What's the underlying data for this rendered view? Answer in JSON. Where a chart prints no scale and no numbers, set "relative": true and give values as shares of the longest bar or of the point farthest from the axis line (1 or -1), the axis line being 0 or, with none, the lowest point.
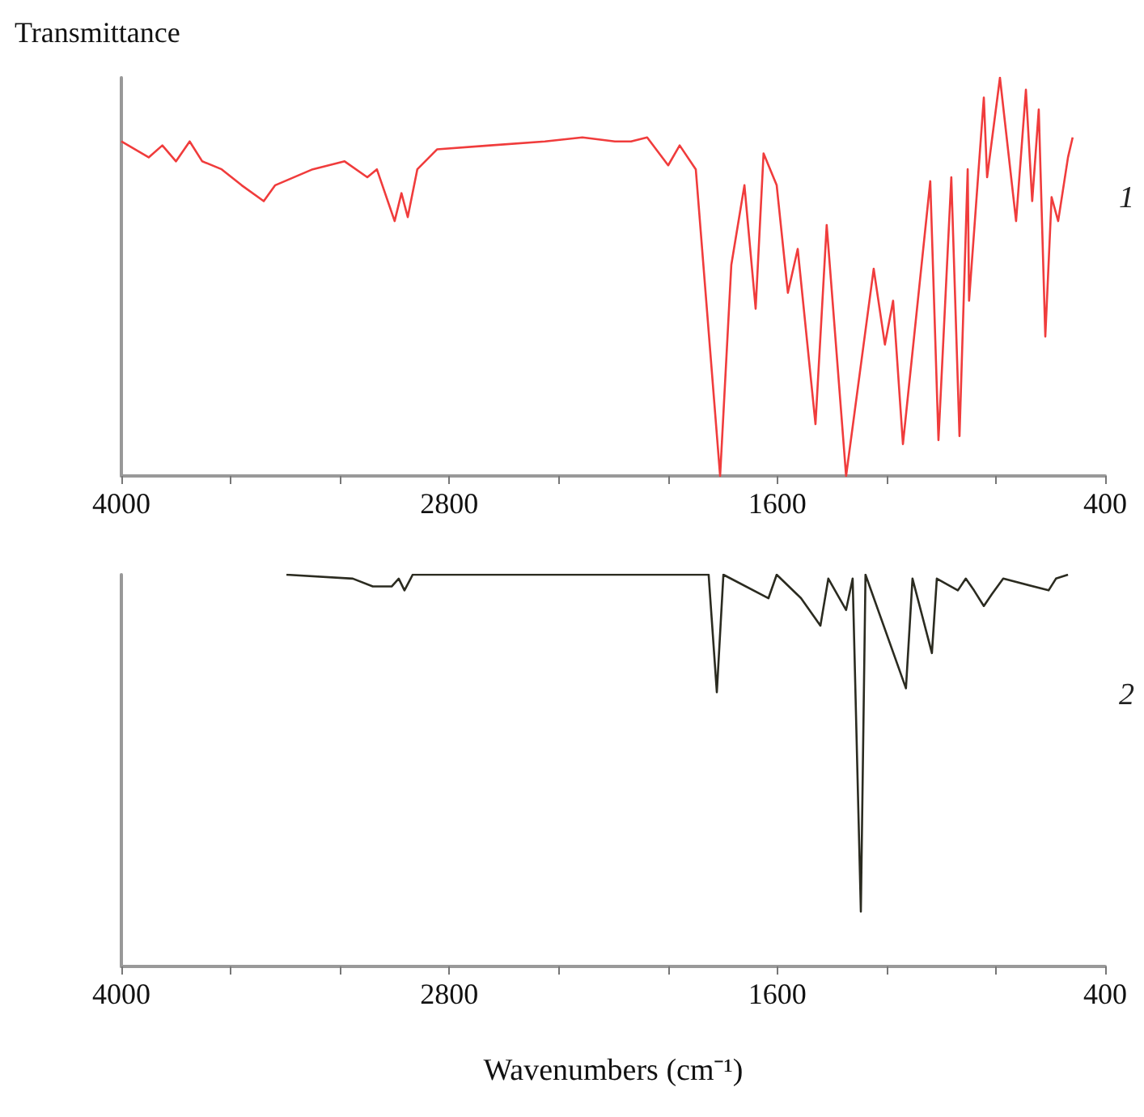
{
  "chart_data": [
    {
      "type": "line",
      "ylabel": "Transmittance",
      "annotations": [
        "1"
      ],
      "relative": true,
      "xlim": [
        4000,
        400
      ],
      "xticks": [
        4000,
        {
          "value": 3600,
          "label": null
        },
        {
          "value": 3200,
          "label": null
        },
        2800,
        {
          "value": 2400,
          "label": null
        },
        {
          "value": 2000,
          "label": null
        },
        1600,
        {
          "value": 1200,
          "label": null
        },
        {
          "value": 800,
          "label": null
        },
        400
      ],
      "tick_labels": "x",
      "grid": false,
      "marker": "none",
      "line_style": "solid",
      "series": [
        {
          "color": "#f03c3c",
          "x": [
            4000,
            3900,
            3850,
            3800,
            3750,
            3704,
            3633,
            3560,
            3479,
            3437,
            3300,
            3183,
            3100,
            3065,
            3000,
            2975,
            2952,
            2917,
            2845,
            2650,
            2450,
            2313,
            2194,
            2135,
            2076,
            1999,
            1957,
            1898,
            1809,
            1768,
            1720,
            1679,
            1650,
            1602,
            1561,
            1525,
            1460,
            1419,
            1348,
            1247,
            1206,
            1176,
            1140,
            1040,
            1010,
            963,
            933,
            903,
            898,
            844,
            832,
            785,
            726,
            690,
            667,
            643,
            619,
            596,
            572,
            536,
            519
          ],
          "values": [
            0.84,
            0.8,
            0.83,
            0.79,
            0.84,
            0.79,
            0.77,
            0.73,
            0.69,
            0.73,
            0.77,
            0.79,
            0.75,
            0.77,
            0.64,
            0.71,
            0.65,
            0.77,
            0.82,
            0.83,
            0.84,
            0.85,
            0.84,
            0.84,
            0.85,
            0.78,
            0.83,
            0.77,
            0.0,
            0.53,
            0.73,
            0.42,
            0.81,
            0.73,
            0.46,
            0.57,
            0.13,
            0.63,
            0.0,
            0.52,
            0.33,
            0.44,
            0.08,
            0.74,
            0.09,
            0.75,
            0.1,
            0.77,
            0.44,
            0.95,
            0.75,
            1.0,
            0.64,
            0.97,
            0.69,
            0.92,
            0.35,
            0.7,
            0.64,
            0.8,
            0.85
          ]
        }
      ]
    },
    {
      "type": "line",
      "xlabel": "Wavenumbers (cm⁻¹)",
      "annotations": [
        "2"
      ],
      "relative": true,
      "xlim": [
        4000,
        400
      ],
      "xticks": [
        4000,
        {
          "value": 3600,
          "label": null
        },
        {
          "value": 3200,
          "label": null
        },
        2800,
        {
          "value": 2400,
          "label": null
        },
        {
          "value": 2000,
          "label": null
        },
        1600,
        {
          "value": 1200,
          "label": null
        },
        {
          "value": 800,
          "label": null
        },
        400
      ],
      "tick_labels": "x",
      "grid": false,
      "marker": "none",
      "line_style": "solid",
      "series": [
        {
          "color": "#2b2b20",
          "x": [
            3396,
            3153,
            3080,
            3011,
            2985,
            2964,
            2934,
            1880,
            1851,
            1821,
            1797,
            1632,
            1602,
            1513,
            1442,
            1413,
            1348,
            1324,
            1294,
            1277,
            1129,
            1105,
            1034,
            1016,
            939,
            910,
            880,
            844,
            815,
            773,
            607,
            580,
            536
          ],
          "values": [
            1.0,
            0.99,
            0.97,
            0.97,
            0.99,
            0.96,
            1.0,
            1.0,
            1.0,
            0.7,
            1.0,
            0.94,
            1.0,
            0.94,
            0.87,
            0.99,
            0.91,
            0.99,
            0.14,
            1.0,
            0.71,
            0.99,
            0.8,
            0.99,
            0.96,
            0.99,
            0.96,
            0.92,
            0.95,
            0.99,
            0.96,
            0.99,
            1.0
          ]
        }
      ]
    }
  ]
}
